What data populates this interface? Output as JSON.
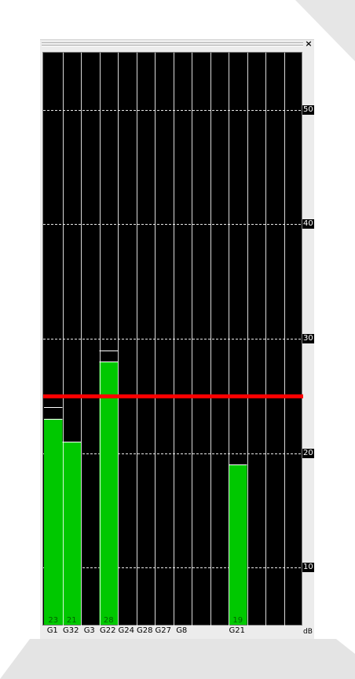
{
  "window": {
    "close_glyph": "×"
  },
  "colors": {
    "bar": "#00c800",
    "background": "#000000",
    "threshold": "#ff0000",
    "grid": "#ffffff"
  },
  "chart_data": {
    "type": "bar",
    "categories": [
      "G1",
      "G32",
      "G3",
      "G22",
      "G24",
      "G28",
      "G27",
      "G8",
      "",
      "",
      "G21",
      "",
      "",
      "",
      ""
    ],
    "values": [
      23,
      21,
      null,
      28,
      null,
      null,
      null,
      null,
      null,
      null,
      19,
      null,
      null,
      null,
      null
    ],
    "peak_values": [
      24,
      21,
      null,
      29,
      null,
      null,
      null,
      null,
      null,
      null,
      19,
      null,
      null,
      null,
      null
    ],
    "data_labels": [
      "23",
      "21",
      "",
      "28",
      "",
      "",
      "",
      "",
      "",
      "",
      "19",
      "",
      "",
      "",
      ""
    ],
    "threshold": 25,
    "unit": "dB",
    "ylim": [
      5,
      55
    ],
    "yticks": [
      10,
      20,
      30,
      40,
      50
    ],
    "grid": true
  }
}
